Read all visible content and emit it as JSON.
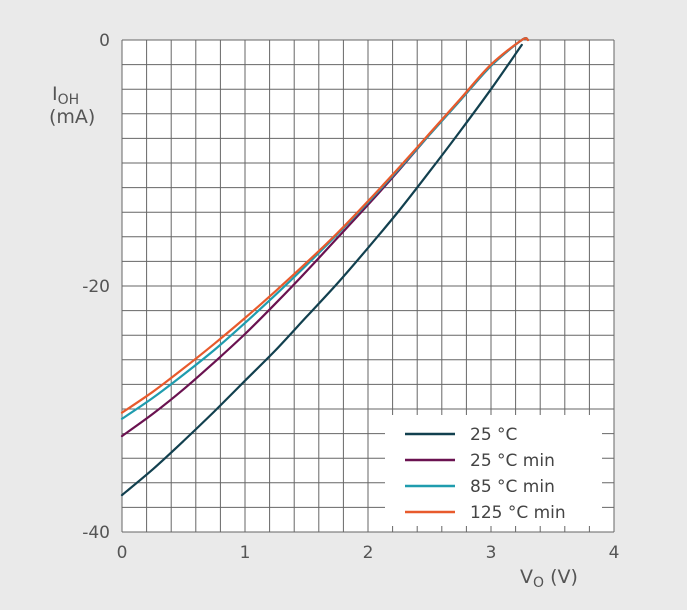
{
  "chart_data": {
    "type": "line",
    "title": "",
    "ylabel": {
      "main": "I",
      "sub": "OH",
      "unit": "(mA)"
    },
    "xlabel": {
      "main": "V",
      "sub": "O",
      "unit": " (V)"
    },
    "xlim": [
      0,
      4
    ],
    "ylim": [
      -40,
      0
    ],
    "x_ticks": [
      0,
      1,
      2,
      3,
      4
    ],
    "x_tick_labels": [
      "0",
      "1",
      "2",
      "3",
      "4"
    ],
    "y_ticks": [
      0,
      -20,
      -40
    ],
    "y_tick_labels": [
      "0",
      "-20",
      "-40"
    ],
    "grid": true,
    "legend_position": "bottom-right",
    "colors": {
      "background": "#eaeaea",
      "plot_background": "#ffffff",
      "grid": "#666666"
    },
    "series": [
      {
        "name": "25 °C",
        "color": "#12404f",
        "x": [
          0,
          0.25,
          0.5,
          0.75,
          1.0,
          1.25,
          1.5,
          1.75,
          2.0,
          2.25,
          2.5,
          2.75,
          3.0,
          3.25
        ],
        "y": [
          -37.0,
          -34.9,
          -32.6,
          -30.2,
          -27.7,
          -25.2,
          -22.5,
          -19.8,
          -16.9,
          -13.9,
          -10.7,
          -7.4,
          -4.0,
          -0.4
        ]
      },
      {
        "name": "25 °C min",
        "color": "#6a1250",
        "x": [
          0,
          0.25,
          0.5,
          0.75,
          1.0,
          1.25,
          1.5,
          1.75,
          2.0,
          2.25,
          2.5,
          2.75,
          3.0,
          3.25,
          3.3
        ],
        "y": [
          -32.2,
          -30.4,
          -28.4,
          -26.2,
          -23.9,
          -21.4,
          -18.8,
          -16.1,
          -13.4,
          -10.6,
          -7.7,
          -4.9,
          -2.1,
          0.4,
          0.0
        ]
      },
      {
        "name": "85 °C min",
        "color": "#1f9cae",
        "x": [
          0,
          0.25,
          0.5,
          0.75,
          1.0,
          1.25,
          1.5,
          1.75,
          2.0,
          2.25,
          2.5,
          2.75,
          3.0,
          3.25,
          3.3
        ],
        "y": [
          -30.8,
          -29.1,
          -27.2,
          -25.2,
          -23.0,
          -20.7,
          -18.3,
          -15.8,
          -13.2,
          -10.5,
          -7.7,
          -4.9,
          -2.1,
          0.4,
          0.0
        ]
      },
      {
        "name": "125 °C min",
        "color": "#e85a2c",
        "x": [
          0,
          0.25,
          0.5,
          0.75,
          1.0,
          1.25,
          1.5,
          1.75,
          2.0,
          2.25,
          2.5,
          2.75,
          3.0,
          3.25,
          3.3
        ],
        "y": [
          -30.3,
          -28.6,
          -26.7,
          -24.7,
          -22.6,
          -20.4,
          -18.1,
          -15.7,
          -13.1,
          -10.4,
          -7.6,
          -4.8,
          -2.0,
          0.4,
          0.0
        ]
      }
    ]
  }
}
